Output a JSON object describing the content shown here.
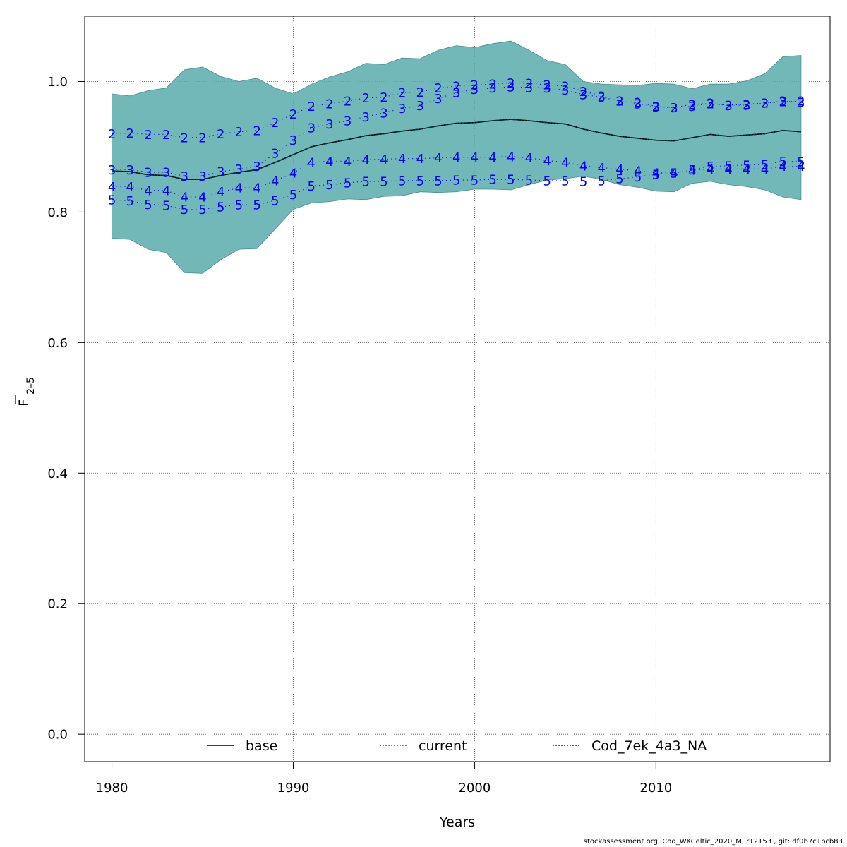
{
  "chart_data": {
    "type": "line",
    "xlabel": "Years",
    "ylabel_main": "F",
    "ylabel_sub": "2–5",
    "xlim": [
      1978.5,
      2019.6
    ],
    "ylim": [
      -0.042,
      1.1
    ],
    "xticks": [
      1980,
      1990,
      2000,
      2010
    ],
    "yticks": [
      0.0,
      0.2,
      0.4,
      0.6,
      0.8,
      1.0
    ],
    "ytick_labels": [
      "0.0",
      "0.2",
      "0.4",
      "0.6",
      "0.8",
      "1.0"
    ],
    "grid": true,
    "band_color": "#5aabab",
    "age_label_color": "#0000ff",
    "years": [
      1980,
      1981,
      1982,
      1983,
      1984,
      1985,
      1986,
      1987,
      1988,
      1989,
      1990,
      1991,
      1992,
      1993,
      1994,
      1995,
      1996,
      1997,
      1998,
      1999,
      2000,
      2001,
      2002,
      2003,
      2004,
      2005,
      2006,
      2007,
      2008,
      2009,
      2010,
      2011,
      2012,
      2013,
      2014,
      2015,
      2016,
      2017,
      2018
    ],
    "band_upper": [
      0.981,
      0.978,
      0.986,
      0.99,
      1.018,
      1.022,
      1.008,
      1.0,
      1.005,
      0.99,
      0.981,
      0.996,
      1.007,
      1.015,
      1.028,
      1.026,
      1.036,
      1.035,
      1.048,
      1.055,
      1.052,
      1.058,
      1.062,
      1.048,
      1.032,
      1.026,
      1.0,
      0.996,
      0.995,
      0.994,
      0.997,
      0.996,
      0.989,
      0.996,
      0.996,
      1.001,
      1.012,
      1.038,
      1.04
    ],
    "band_lower": [
      0.76,
      0.758,
      0.743,
      0.738,
      0.707,
      0.706,
      0.727,
      0.743,
      0.744,
      0.774,
      0.804,
      0.814,
      0.816,
      0.82,
      0.819,
      0.824,
      0.825,
      0.831,
      0.83,
      0.831,
      0.835,
      0.835,
      0.834,
      0.842,
      0.849,
      0.851,
      0.855,
      0.85,
      0.842,
      0.838,
      0.832,
      0.831,
      0.844,
      0.847,
      0.842,
      0.839,
      0.834,
      0.823,
      0.819
    ],
    "series": [
      {
        "name": "base",
        "line_color": "#000000",
        "dash": "solid",
        "values": [
          0.863,
          0.862,
          0.857,
          0.856,
          0.85,
          0.85,
          0.856,
          0.861,
          0.865,
          0.876,
          0.888,
          0.9,
          0.906,
          0.911,
          0.917,
          0.92,
          0.924,
          0.927,
          0.932,
          0.936,
          0.937,
          0.94,
          0.942,
          0.94,
          0.937,
          0.935,
          0.927,
          0.921,
          0.916,
          0.913,
          0.91,
          0.909,
          0.914,
          0.919,
          0.916,
          0.918,
          0.92,
          0.925,
          0.923
        ]
      },
      {
        "name": "current",
        "line_color": "#0072b2",
        "dash": "dotted",
        "values": [
          0.863,
          0.862,
          0.857,
          0.856,
          0.85,
          0.85,
          0.856,
          0.861,
          0.865,
          0.876,
          0.888,
          0.9,
          0.906,
          0.911,
          0.917,
          0.92,
          0.924,
          0.927,
          0.932,
          0.936,
          0.937,
          0.94,
          0.942,
          0.94,
          0.937,
          0.935,
          0.927,
          0.921,
          0.916,
          0.913,
          0.91,
          0.909,
          0.914,
          0.919,
          0.916,
          0.918,
          0.92,
          0.925,
          0.923
        ]
      },
      {
        "name": "Cod_7ek_4a3_NA",
        "line_color": "#003a3a",
        "dash": "dotted",
        "values": [
          0.863,
          0.862,
          0.857,
          0.856,
          0.85,
          0.85,
          0.856,
          0.861,
          0.865,
          0.876,
          0.888,
          0.9,
          0.906,
          0.911,
          0.917,
          0.92,
          0.924,
          0.927,
          0.932,
          0.936,
          0.937,
          0.94,
          0.942,
          0.94,
          0.937,
          0.935,
          0.927,
          0.921,
          0.916,
          0.913,
          0.91,
          0.909,
          0.914,
          0.919,
          0.916,
          0.918,
          0.92,
          0.925,
          0.923
        ]
      }
    ],
    "age_series": [
      {
        "label": "2",
        "values": [
          0.92,
          0.921,
          0.919,
          0.919,
          0.914,
          0.914,
          0.92,
          0.923,
          0.925,
          0.937,
          0.95,
          0.962,
          0.966,
          0.97,
          0.975,
          0.976,
          0.983,
          0.984,
          0.99,
          0.993,
          0.995,
          0.996,
          0.998,
          0.997,
          0.995,
          0.993,
          0.985,
          0.978,
          0.97,
          0.968,
          0.962,
          0.96,
          0.965,
          0.966,
          0.964,
          0.965,
          0.967,
          0.969,
          0.97
        ]
      },
      {
        "label": "3",
        "values": [
          0.865,
          0.865,
          0.861,
          0.861,
          0.855,
          0.855,
          0.862,
          0.866,
          0.87,
          0.89,
          0.91,
          0.929,
          0.935,
          0.94,
          0.946,
          0.952,
          0.959,
          0.963,
          0.974,
          0.983,
          0.988,
          0.99,
          0.992,
          0.991,
          0.99,
          0.987,
          0.98,
          0.976,
          0.97,
          0.966,
          0.961,
          0.96,
          0.962,
          0.967,
          0.963,
          0.964,
          0.967,
          0.97,
          0.968
        ]
      },
      {
        "label": "4",
        "values": [
          0.839,
          0.839,
          0.833,
          0.833,
          0.823,
          0.823,
          0.831,
          0.837,
          0.837,
          0.848,
          0.86,
          0.876,
          0.878,
          0.878,
          0.88,
          0.881,
          0.882,
          0.882,
          0.883,
          0.884,
          0.884,
          0.884,
          0.885,
          0.883,
          0.879,
          0.876,
          0.871,
          0.868,
          0.866,
          0.863,
          0.86,
          0.86,
          0.864,
          0.866,
          0.866,
          0.866,
          0.866,
          0.87,
          0.87
        ]
      },
      {
        "label": "5",
        "values": [
          0.819,
          0.817,
          0.812,
          0.81,
          0.804,
          0.804,
          0.808,
          0.811,
          0.811,
          0.818,
          0.827,
          0.84,
          0.842,
          0.845,
          0.847,
          0.847,
          0.848,
          0.848,
          0.848,
          0.849,
          0.849,
          0.85,
          0.85,
          0.849,
          0.848,
          0.848,
          0.847,
          0.848,
          0.851,
          0.854,
          0.858,
          0.86,
          0.865,
          0.87,
          0.871,
          0.872,
          0.873,
          0.878,
          0.877
        ]
      }
    ],
    "legend": {
      "position": "bottom",
      "entries": [
        {
          "label": "base",
          "color": "#000000",
          "dash": "solid"
        },
        {
          "label": "current",
          "color": "#0072b2",
          "dash": "dotted"
        },
        {
          "label": "Cod_7ek_4a3_NA",
          "color": "#003a3a",
          "dash": "dotted"
        }
      ]
    }
  },
  "footer": {
    "text": "stockassessment.org, Cod_WKCeltic_2020_M, r12153 , git: df0b7c1bcb83"
  }
}
